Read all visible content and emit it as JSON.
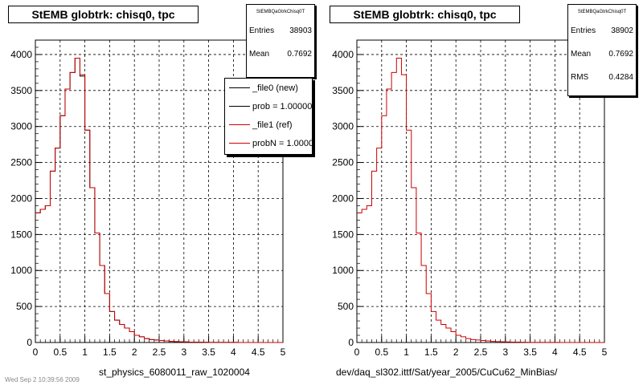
{
  "colors": {
    "new": "#000000",
    "ref": "#cc0000",
    "grid": "#000000"
  },
  "footer_faint": "Wed Sep 2 10:39:56 2009",
  "chart_data": [
    {
      "type": "line",
      "title": "StEMB globtrk: chisq0, tpc",
      "xlabel": "st_physics_6080011_raw_1020004",
      "x_range": [
        0,
        5
      ],
      "y_range": [
        0,
        4200
      ],
      "x_ticks": [
        "0",
        "0.5",
        "1",
        "1.5",
        "2",
        "2.5",
        "3",
        "3.5",
        "4",
        "4.5",
        "5"
      ],
      "y_ticks": [
        "0",
        "500",
        "1000",
        "1500",
        "2000",
        "2500",
        "3000",
        "3500",
        "4000"
      ],
      "grid": true,
      "stats": {
        "title": "StEMBQaGtrkChisq0T",
        "entries_label": "Entries",
        "entries": "38903",
        "mean_label": "Mean",
        "mean": "0.7692"
      },
      "legend": {
        "placement": "top-right",
        "entries": [
          "_file0 (new)",
          "prob = 1.000000",
          "_file1 (ref)",
          "probN = 1.000000"
        ]
      },
      "bin_width": 0.1,
      "series": [
        {
          "name": "_file0 (new)",
          "values": [
            1800,
            1850,
            1900,
            2380,
            2700,
            3150,
            3520,
            3750,
            3950,
            3700,
            2950,
            2150,
            1520,
            1070,
            680,
            430,
            310,
            250,
            200,
            150,
            100,
            80,
            55,
            40,
            35,
            28,
            22,
            15,
            12,
            10,
            8,
            6,
            5,
            4,
            3,
            2,
            2,
            1,
            1,
            1,
            1,
            0,
            0,
            0,
            0,
            0,
            0,
            0,
            0,
            0
          ]
        },
        {
          "name": "_file1 (ref)",
          "values": [
            1800,
            1850,
            1900,
            2380,
            2700,
            3150,
            3520,
            3750,
            3950,
            3720,
            2950,
            2150,
            1520,
            1070,
            680,
            430,
            310,
            250,
            200,
            150,
            100,
            80,
            55,
            40,
            35,
            28,
            22,
            15,
            12,
            10,
            8,
            6,
            5,
            4,
            3,
            2,
            2,
            1,
            1,
            1,
            1,
            0,
            0,
            0,
            0,
            0,
            0,
            0,
            0,
            0
          ]
        }
      ]
    },
    {
      "type": "line",
      "title": "StEMB globtrk: chisq0, tpc",
      "xlabel": "dev/daq_sl302.ittf/Sat/year_2005/CuCu62_MinBias/",
      "x_range": [
        0,
        5
      ],
      "y_range": [
        0,
        4200
      ],
      "x_ticks": [
        "0",
        "0.5",
        "1",
        "1.5",
        "2",
        "2.5",
        "3",
        "3.5",
        "4",
        "4.5",
        "5"
      ],
      "y_ticks": [
        "0",
        "500",
        "1000",
        "1500",
        "2000",
        "2500",
        "3000",
        "3500",
        "4000"
      ],
      "grid": true,
      "stats": {
        "title": "StEMBQaGtrkChisq0T",
        "entries_label": "Entries",
        "entries": "38902",
        "mean_label": "Mean",
        "mean": "0.7692",
        "rms_label": "RMS",
        "rms": "0.4284"
      },
      "bin_width": 0.1,
      "series": [
        {
          "name": "",
          "values": [
            1800,
            1850,
            1900,
            2380,
            2700,
            3150,
            3520,
            3750,
            3950,
            3720,
            2950,
            2150,
            1520,
            1070,
            680,
            430,
            310,
            250,
            200,
            150,
            100,
            80,
            55,
            40,
            35,
            28,
            22,
            15,
            12,
            10,
            8,
            6,
            5,
            4,
            3,
            2,
            2,
            1,
            1,
            1,
            1,
            0,
            0,
            0,
            0,
            0,
            0,
            0,
            0,
            0
          ]
        }
      ]
    }
  ]
}
